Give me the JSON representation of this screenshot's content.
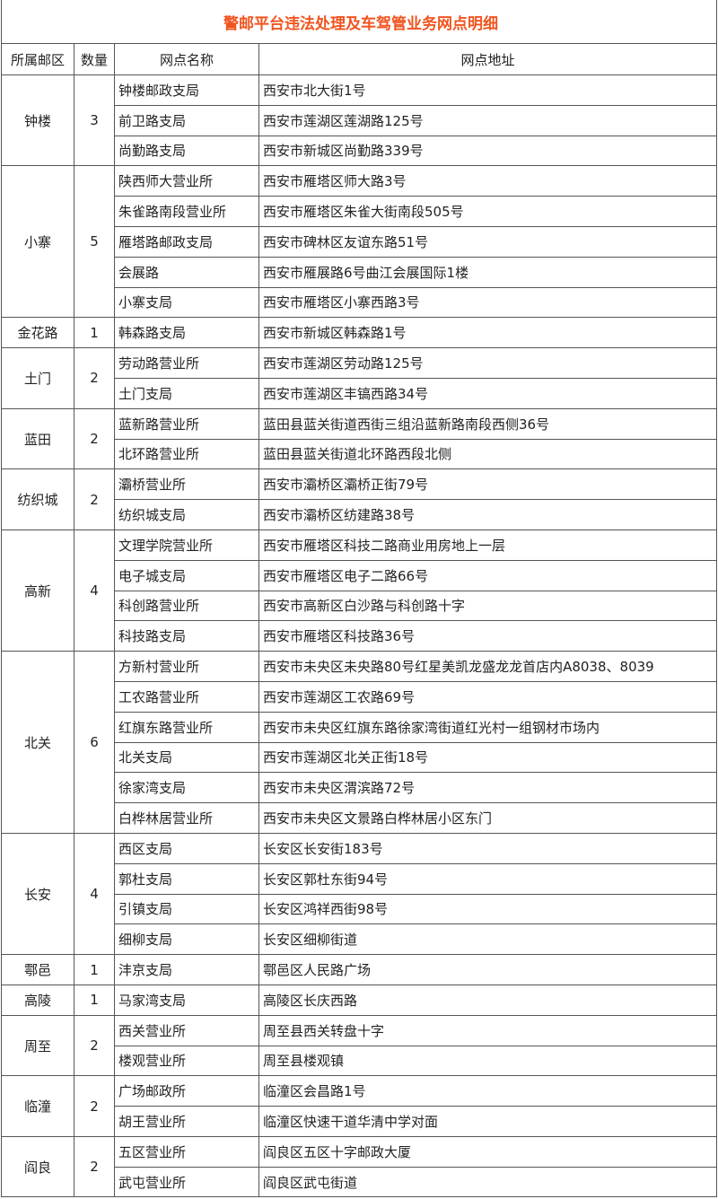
{
  "title": "警邮平台违法处理及车驾管业务网点明细",
  "title_color": "#f0541e",
  "headers": [
    "所属邮区",
    "数量",
    "网点名称",
    "网点地址"
  ],
  "districts": [
    {
      "name": "钟楼",
      "count": "3",
      "outlets": [
        {
          "name": "钟楼邮政支局",
          "address": "西安市北大街1号"
        },
        {
          "name": "前卫路支局",
          "address": "西安市莲湖区莲湖路125号"
        },
        {
          "name": "尚勤路支局",
          "address": "西安市新城区尚勤路339号"
        }
      ]
    },
    {
      "name": "小寨",
      "count": "5",
      "outlets": [
        {
          "name": "陕西师大营业所",
          "address": "西安市雁塔区师大路3号"
        },
        {
          "name": "朱雀路南段营业所",
          "address": "西安市雁塔区朱雀大街南段505号"
        },
        {
          "name": "雁塔路邮政支局",
          "address": "西安市碑林区友谊东路51号"
        },
        {
          "name": "会展路",
          "address": "西安市雁展路6号曲江会展国际1楼"
        },
        {
          "name": "小寨支局",
          "address": "西安市雁塔区小寨西路3号"
        }
      ]
    },
    {
      "name": "金花路",
      "count": "1",
      "outlets": [
        {
          "name": "韩森路支局",
          "address": "西安市新城区韩森路1号"
        }
      ]
    },
    {
      "name": "土门",
      "count": "2",
      "outlets": [
        {
          "name": "劳动路营业所",
          "address": "西安市莲湖区劳动路125号"
        },
        {
          "name": "土门支局",
          "address": "西安市莲湖区丰镐西路34号"
        }
      ]
    },
    {
      "name": "蓝田",
      "count": "2",
      "outlets": [
        {
          "name": "蓝新路营业所",
          "address": "蓝田县蓝关街道西街三组沿蓝新路南段西侧36号"
        },
        {
          "name": "北环路营业所",
          "address": "蓝田县蓝关街道北环路西段北侧"
        }
      ]
    },
    {
      "name": "纺织城",
      "count": "2",
      "outlets": [
        {
          "name": "灞桥营业所",
          "address": "西安市灞桥区灞桥正街79号"
        },
        {
          "name": "纺织城支局",
          "address": "西安市灞桥区纺建路38号"
        }
      ]
    },
    {
      "name": "高新",
      "count": "4",
      "outlets": [
        {
          "name": "文理学院营业所",
          "address": "西安市雁塔区科技二路商业用房地上一层"
        },
        {
          "name": "电子城支局",
          "address": "西安市雁塔区电子二路66号"
        },
        {
          "name": "科创路营业所",
          "address": "西安市高新区白沙路与科创路十字"
        },
        {
          "name": "科技路支局",
          "address": "西安市雁塔区科技路36号"
        }
      ]
    },
    {
      "name": "北关",
      "count": "6",
      "outlets": [
        {
          "name": "方新村营业所",
          "address": "西安市未央区未央路80号红星美凯龙盛龙龙首店内A8038、8039"
        },
        {
          "name": "工农路营业所",
          "address": "西安市莲湖区工农路69号"
        },
        {
          "name": "红旗东路营业所",
          "address": "西安市未央区红旗东路徐家湾街道红光村一组钢材市场内"
        },
        {
          "name": "北关支局",
          "address": "西安市莲湖区北关正街18号"
        },
        {
          "name": "徐家湾支局",
          "address": "西安市未央区渭滨路72号"
        },
        {
          "name": "白桦林居营业所",
          "address": "西安市未央区文景路白桦林居小区东门"
        }
      ]
    },
    {
      "name": "长安",
      "count": "4",
      "outlets": [
        {
          "name": "西区支局",
          "address": "长安区长安街183号"
        },
        {
          "name": "郭杜支局",
          "address": "长安区郭杜东街94号"
        },
        {
          "name": "引镇支局",
          "address": "长安区鸿祥西街98号"
        },
        {
          "name": "细柳支局",
          "address": "长安区细柳街道"
        }
      ]
    },
    {
      "name": "鄠邑",
      "count": "1",
      "outlets": [
        {
          "name": "沣京支局",
          "address": "鄠邑区人民路广场"
        }
      ]
    },
    {
      "name": "高陵",
      "count": "1",
      "outlets": [
        {
          "name": "马家湾支局",
          "address": "高陵区长庆西路"
        }
      ]
    },
    {
      "name": "周至",
      "count": "2",
      "outlets": [
        {
          "name": "西关营业所",
          "address": "周至县西关转盘十字"
        },
        {
          "name": "楼观营业所",
          "address": "周至县楼观镇"
        }
      ]
    },
    {
      "name": "临潼",
      "count": "2",
      "outlets": [
        {
          "name": "广场邮政所",
          "address": "临潼区会昌路1号"
        },
        {
          "name": "胡王营业所",
          "address": "临潼区快速干道华清中学对面"
        }
      ]
    },
    {
      "name": "阎良",
      "count": "2",
      "outlets": [
        {
          "name": "五区营业所",
          "address": "阎良区五区十字邮政大厦"
        },
        {
          "name": "武屯营业所",
          "address": "阎良区武屯街道"
        }
      ]
    }
  ]
}
